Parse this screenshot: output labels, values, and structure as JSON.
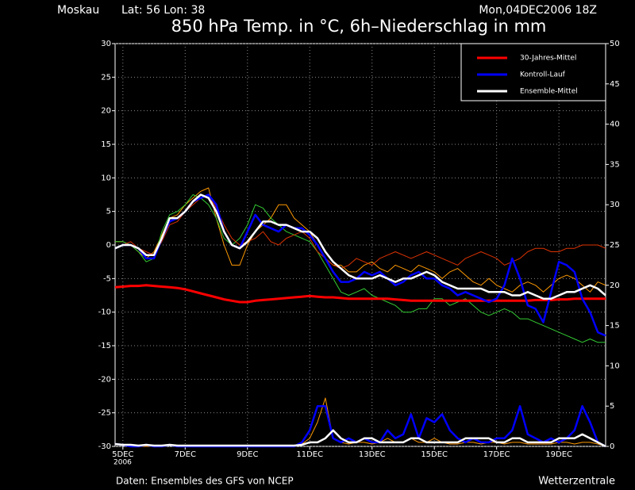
{
  "chart_data": {
    "type": "line",
    "location": "Moskau",
    "lat_lon": "Lat: 56 Lon: 38",
    "run": "Mon,04DEC2006 18Z",
    "title": "850 hPa Temp. in °C, 6h–Niederschlag in mm",
    "source": "Daten: Ensembles des GFS von NCEP",
    "brand": "Wetterzentrale",
    "year_label": "2006",
    "categories": [
      null,
      "5DEC",
      null,
      null,
      null,
      null,
      null,
      null,
      null,
      "7DEC",
      null,
      null,
      null,
      null,
      null,
      null,
      null,
      "9DEC",
      null,
      null,
      null,
      null,
      null,
      null,
      null,
      "11DEC",
      null,
      null,
      null,
      null,
      null,
      null,
      null,
      "13DEC",
      null,
      null,
      null,
      null,
      null,
      null,
      null,
      "15DEC",
      null,
      null,
      null,
      null,
      null,
      null,
      null,
      "17DEC",
      null,
      null,
      null,
      null,
      null,
      null,
      null,
      "19DEC",
      null,
      null,
      null,
      null,
      null,
      null
    ],
    "ylim": [
      -30,
      30
    ],
    "yticks": [
      -30,
      -25,
      -20,
      -15,
      -10,
      -5,
      0,
      5,
      10,
      15,
      20,
      25,
      30
    ],
    "y2lim": [
      0,
      50
    ],
    "y2ticks": [
      0,
      5,
      10,
      15,
      20,
      25,
      30,
      35,
      40,
      45,
      50
    ],
    "grid": true,
    "legend": "upper right",
    "series": [
      {
        "color": "#ff9900",
        "width": 1,
        "values": [
          0.5,
          0.5,
          0,
          -1,
          -2,
          -1,
          1.5,
          4,
          4.5,
          6,
          7,
          8,
          8.5,
          4,
          0,
          -3,
          -3,
          0,
          2,
          3,
          4,
          6,
          6,
          4,
          3,
          2,
          0,
          -2,
          -3,
          -3,
          -4,
          -4,
          -3,
          -2.5,
          -3.5,
          -4,
          -3,
          -3.5,
          -4,
          -3,
          -3.5,
          -4,
          -5,
          -4,
          -3.5,
          -4.5,
          -5.5,
          -6,
          -5,
          -6,
          -6.5,
          -7,
          -6,
          -5.5,
          -6,
          -7,
          -6,
          -5,
          -4.5,
          -5,
          -6,
          -7,
          -5.5,
          -6
        ]
      },
      {
        "color": "#33cc33",
        "width": 1,
        "values": [
          0.5,
          0.5,
          0,
          -1,
          -2.5,
          -2,
          2,
          4.5,
          5,
          6,
          7.5,
          7,
          6,
          4,
          1,
          0,
          1,
          3,
          6,
          5.5,
          4,
          3,
          2,
          1.5,
          1,
          0.5,
          -1,
          -3,
          -5,
          -7,
          -7.5,
          -7,
          -6.5,
          -7.5,
          -8,
          -8.5,
          -9,
          -10,
          -10,
          -9.5,
          -9.5,
          -8,
          -8,
          -9,
          -8.5,
          -8,
          -9,
          -10,
          -10.5,
          -10,
          -9.5,
          -10,
          -11,
          -11,
          -11.5,
          -12,
          -12.5,
          -13,
          -13.5,
          -14,
          -14.5,
          -14,
          -14.5,
          -14.5
        ]
      },
      {
        "color": "#dd3300",
        "width": 1,
        "values": [
          -0.5,
          0,
          0.5,
          -0.5,
          -1,
          -1.5,
          0.5,
          3,
          3.5,
          5,
          6,
          7,
          7.5,
          5.5,
          3,
          1,
          0,
          0.5,
          1,
          2,
          0.5,
          0,
          1,
          1.5,
          2,
          1,
          -1,
          -2,
          -3,
          -3.5,
          -3,
          -2,
          -2.5,
          -3,
          -2,
          -1.5,
          -1,
          -1.5,
          -2,
          -1.5,
          -1,
          -1.5,
          -2,
          -2.5,
          -3,
          -2,
          -1.5,
          -1,
          -1.5,
          -2,
          -3,
          -2.5,
          -2,
          -1,
          -0.5,
          -0.5,
          -1,
          -1,
          -0.5,
          -0.5,
          0,
          0,
          0,
          -0.5
        ]
      },
      {
        "color": "#ff9900",
        "width": 1,
        "axis": "y2",
        "values": [
          0.2,
          0.2,
          0,
          0,
          0,
          0,
          0,
          0.2,
          0,
          0,
          0,
          0,
          0,
          0,
          0,
          0,
          0,
          0,
          0,
          0,
          0,
          0,
          0,
          0,
          0.3,
          1,
          3,
          6,
          1,
          0.5,
          0.3,
          0.5,
          0.5,
          0.3,
          0.5,
          1,
          0.5,
          0.5,
          1,
          0.5,
          0.5,
          1,
          0.5,
          0.3,
          0.3,
          0.5,
          0.5,
          0.3,
          0.5,
          0.5,
          0.3,
          0.5,
          0.5,
          0.3,
          0.3,
          0.3,
          0.3,
          0.5,
          0.5,
          0.3,
          0.5,
          0.5,
          0.3,
          0
        ]
      },
      {
        "name": "30-Jahres-Mittel",
        "color": "#ff0000",
        "width": 3,
        "values": [
          -6.3,
          -6.2,
          -6.1,
          -6.1,
          -6,
          -6.1,
          -6.2,
          -6.3,
          -6.4,
          -6.6,
          -6.9,
          -7.2,
          -7.5,
          -7.8,
          -8.1,
          -8.3,
          -8.5,
          -8.5,
          -8.3,
          -8.2,
          -8.1,
          -8,
          -7.9,
          -7.8,
          -7.7,
          -7.6,
          -7.7,
          -7.8,
          -7.8,
          -7.9,
          -8,
          -8,
          -8,
          -8,
          -8,
          -8,
          -8.1,
          -8.2,
          -8.3,
          -8.3,
          -8.3,
          -8.3,
          -8.3,
          -8.3,
          -8.3,
          -8.3,
          -8.3,
          -8.3,
          -8.3,
          -8.3,
          -8.3,
          -8.3,
          -8.3,
          -8.3,
          -8.2,
          -8.2,
          -8.2,
          -8.1,
          -8.1,
          -8,
          -8,
          -8,
          -8,
          -8
        ]
      },
      {
        "name": "Kontroll-Lauf",
        "color": "#0000ff",
        "width": 2.5,
        "values": [
          -0.5,
          0,
          0,
          -0.5,
          -2,
          -2,
          1,
          3.5,
          4,
          5,
          6.5,
          7,
          7.5,
          6,
          2,
          0,
          -0.5,
          2,
          4.5,
          3,
          2.5,
          2,
          3,
          2.5,
          2.5,
          1.5,
          0,
          -2,
          -4,
          -5.5,
          -5.5,
          -5,
          -4,
          -4.5,
          -4,
          -5,
          -6,
          -5.5,
          -4.5,
          -4,
          -5,
          -5,
          -6,
          -6.5,
          -7.5,
          -7,
          -7.5,
          -8,
          -8.5,
          -8,
          -6,
          -2,
          -5,
          -9,
          -9.5,
          -11.5,
          -7,
          -2.5,
          -3,
          -4,
          -8,
          -10,
          -13,
          -13.5
        ]
      },
      {
        "name": "Ensemble-Mittel",
        "color": "#ffffff",
        "width": 2.5,
        "values": [
          -0.5,
          0,
          0,
          -0.5,
          -1.5,
          -1.5,
          1,
          4,
          4,
          5,
          6.5,
          7.5,
          7,
          5,
          2,
          0,
          -0.5,
          0.5,
          2,
          3.5,
          3.5,
          3,
          3,
          2.5,
          2,
          2,
          1,
          -1,
          -2.5,
          -3.5,
          -4.5,
          -5,
          -5,
          -5,
          -4.5,
          -5,
          -5.5,
          -5,
          -5,
          -4.5,
          -4,
          -4.5,
          -5.5,
          -6,
          -6.5,
          -6.5,
          -6.5,
          -6.5,
          -7,
          -7,
          -7,
          -7.5,
          -7.5,
          -7,
          -7.5,
          -8,
          -8,
          -7.5,
          -7,
          -7,
          -6.5,
          -6,
          -6.5,
          -7.5
        ]
      },
      {
        "color": "#0000ff",
        "width": 2.5,
        "axis": "y2",
        "values": [
          0.3,
          0.2,
          0,
          0,
          0.2,
          0,
          0,
          0.2,
          0,
          0,
          0,
          0,
          0,
          0,
          0,
          0,
          0,
          0,
          0,
          0,
          0,
          0,
          0,
          0,
          0.5,
          2,
          5,
          5,
          1,
          0.5,
          1,
          0.5,
          1,
          0.5,
          0.5,
          2,
          1,
          1.5,
          4,
          1,
          3.5,
          3,
          4,
          2,
          1,
          0.5,
          1,
          0.5,
          0.5,
          1,
          1,
          2,
          5,
          1.5,
          1,
          0.5,
          1,
          0.5,
          1,
          2,
          5,
          3,
          0.5,
          0
        ]
      },
      {
        "color": "#ffffff",
        "width": 2.5,
        "axis": "y2",
        "values": [
          0.3,
          0.2,
          0.2,
          0.1,
          0.2,
          0.1,
          0.1,
          0.2,
          0.1,
          0.1,
          0.1,
          0.1,
          0.1,
          0.1,
          0.1,
          0.1,
          0.1,
          0.1,
          0.1,
          0.1,
          0.1,
          0.1,
          0.1,
          0.1,
          0.2,
          0.5,
          0.5,
          1,
          2,
          1,
          0.5,
          0.5,
          1,
          1,
          0.5,
          0.5,
          0.5,
          0.5,
          1,
          1,
          0.5,
          0.5,
          0.5,
          0.5,
          0.5,
          1,
          1,
          1,
          1,
          0.5,
          0.5,
          1,
          1,
          0.5,
          0.5,
          0.5,
          0.5,
          1,
          1,
          1,
          1.5,
          1,
          0.5,
          0
        ]
      }
    ]
  }
}
